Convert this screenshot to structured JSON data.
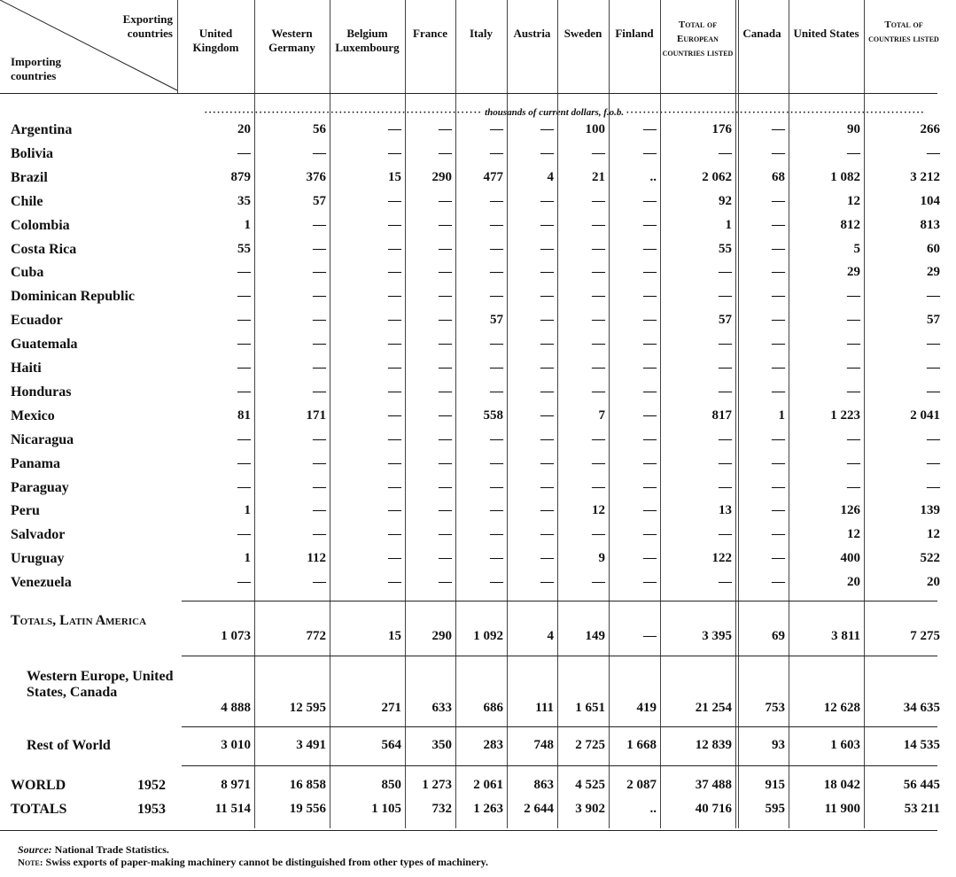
{
  "header": {
    "exporting": "Exporting countries",
    "importing": "Importing countries",
    "columns": [
      "United Kingdom",
      "Western Germany",
      "Belgium Luxembourg",
      "France",
      "Italy",
      "Austria",
      "Sweden",
      "Finland",
      "Total of European countries listed",
      "Canada",
      "United States",
      "Total of countries listed"
    ]
  },
  "unit": "thousands of current dollars, f.o.b.",
  "rows": [
    {
      "label": "Argentina",
      "cells": [
        "20",
        "56",
        "—",
        "—",
        "—",
        "—",
        "100",
        "—",
        "176",
        "—",
        "90",
        "266"
      ]
    },
    {
      "label": "Bolivia",
      "cells": [
        "—",
        "—",
        "—",
        "—",
        "—",
        "—",
        "—",
        "—",
        "—",
        "—",
        "—",
        "—"
      ]
    },
    {
      "label": "Brazil",
      "cells": [
        "879",
        "376",
        "15",
        "290",
        "477",
        "4",
        "21",
        "..",
        "2 062",
        "68",
        "1 082",
        "3 212"
      ]
    },
    {
      "label": "Chile",
      "cells": [
        "35",
        "57",
        "—",
        "—",
        "—",
        "—",
        "—",
        "—",
        "92",
        "—",
        "12",
        "104"
      ]
    },
    {
      "label": "Colombia",
      "cells": [
        "1",
        "—",
        "—",
        "—",
        "—",
        "—",
        "—",
        "—",
        "1",
        "—",
        "812",
        "813"
      ]
    },
    {
      "label": "Costa Rica",
      "cells": [
        "55",
        "—",
        "—",
        "—",
        "—",
        "—",
        "—",
        "—",
        "55",
        "—",
        "5",
        "60"
      ]
    },
    {
      "label": "Cuba",
      "cells": [
        "—",
        "—",
        "—",
        "—",
        "—",
        "—",
        "—",
        "—",
        "—",
        "—",
        "29",
        "29"
      ]
    },
    {
      "label": "Dominican Republic",
      "cells": [
        "—",
        "—",
        "—",
        "—",
        "—",
        "—",
        "—",
        "—",
        "—",
        "—",
        "—",
        "—"
      ]
    },
    {
      "label": "Ecuador",
      "cells": [
        "—",
        "—",
        "—",
        "—",
        "57",
        "—",
        "—",
        "—",
        "57",
        "—",
        "—",
        "57"
      ]
    },
    {
      "label": "Guatemala",
      "cells": [
        "—",
        "—",
        "—",
        "—",
        "—",
        "—",
        "—",
        "—",
        "—",
        "—",
        "—",
        "—"
      ]
    },
    {
      "label": "Haiti",
      "cells": [
        "—",
        "—",
        "—",
        "—",
        "—",
        "—",
        "—",
        "—",
        "—",
        "—",
        "—",
        "—"
      ]
    },
    {
      "label": "Honduras",
      "cells": [
        "—",
        "—",
        "—",
        "—",
        "—",
        "—",
        "—",
        "—",
        "—",
        "—",
        "—",
        "—"
      ]
    },
    {
      "label": "Mexico",
      "cells": [
        "81",
        "171",
        "—",
        "—",
        "558",
        "—",
        "7",
        "—",
        "817",
        "1",
        "1 223",
        "2 041"
      ]
    },
    {
      "label": "Nicaragua",
      "cells": [
        "—",
        "—",
        "—",
        "—",
        "—",
        "—",
        "—",
        "—",
        "—",
        "—",
        "—",
        "—"
      ]
    },
    {
      "label": "Panama",
      "cells": [
        "—",
        "—",
        "—",
        "—",
        "—",
        "—",
        "—",
        "—",
        "—",
        "—",
        "—",
        "—"
      ]
    },
    {
      "label": "Paraguay",
      "cells": [
        "—",
        "—",
        "—",
        "—",
        "—",
        "—",
        "—",
        "—",
        "—",
        "—",
        "—",
        "—"
      ]
    },
    {
      "label": "Peru",
      "cells": [
        "1",
        "—",
        "—",
        "—",
        "—",
        "—",
        "12",
        "—",
        "13",
        "—",
        "126",
        "139"
      ]
    },
    {
      "label": "Salvador",
      "cells": [
        "—",
        "—",
        "—",
        "—",
        "—",
        "—",
        "—",
        "—",
        "—",
        "—",
        "12",
        "12"
      ]
    },
    {
      "label": "Uruguay",
      "cells": [
        "1",
        "112",
        "—",
        "—",
        "—",
        "—",
        "9",
        "—",
        "122",
        "—",
        "400",
        "522"
      ]
    },
    {
      "label": "Venezuela",
      "cells": [
        "—",
        "—",
        "—",
        "—",
        "—",
        "—",
        "—",
        "—",
        "—",
        "—",
        "20",
        "20"
      ]
    }
  ],
  "summary_rows": [
    {
      "label": "Totals, Latin America",
      "cells": [
        "1 073",
        "772",
        "15",
        "290",
        "1 092",
        "4",
        "149",
        "—",
        "3 395",
        "69",
        "3 811",
        "7 275"
      ]
    },
    {
      "label": "Western Europe, United States, Canada",
      "cells": [
        "4 888",
        "12 595",
        "271",
        "633",
        "686",
        "111",
        "1 651",
        "419",
        "21 254",
        "753",
        "12 628",
        "34 635"
      ]
    },
    {
      "label": "Rest of World",
      "cells": [
        "3 010",
        "3 491",
        "564",
        "350",
        "283",
        "748",
        "2 725",
        "1 668",
        "12 839",
        "93",
        "1 603",
        "14 535"
      ]
    }
  ],
  "world": {
    "label1": "WORLD",
    "label2": "TOTALS",
    "rows": [
      {
        "year": "1952",
        "cells": [
          "8 971",
          "16 858",
          "850",
          "1 273",
          "2 061",
          "863",
          "4 525",
          "2 087",
          "37 488",
          "915",
          "18 042",
          "56 445"
        ]
      },
      {
        "year": "1953",
        "cells": [
          "11 514",
          "19 556",
          "1 105",
          "732",
          "1 263",
          "2 644",
          "3 902",
          "..",
          "40 716",
          "595",
          "11 900",
          "53 211"
        ]
      }
    ]
  },
  "source": {
    "label": "Source:",
    "text": "National Trade Statistics."
  },
  "note": {
    "label": "Note:",
    "text": "Swiss exports of paper-making machinery cannot be distinguished from other types of machinery."
  }
}
